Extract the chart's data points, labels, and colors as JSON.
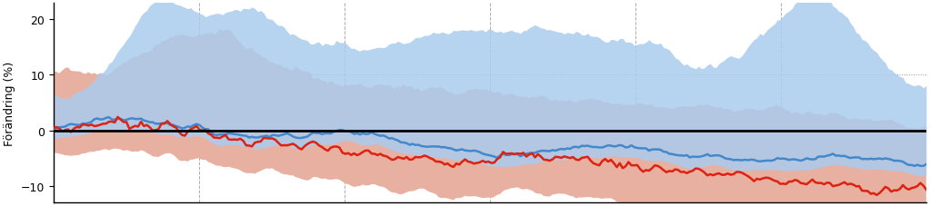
{
  "ylabel": "Förändring (%)",
  "yticks": [
    -10,
    0,
    10,
    20
  ],
  "ylim": [
    -13,
    23
  ],
  "background_color": "#ffffff",
  "red_color": "#dd2211",
  "blue_color": "#4488cc",
  "red_fill_color": "#e8b0a0",
  "blue_fill_color": "#aaccee",
  "zero_line_color": "#000000",
  "grid_color": "#777777",
  "n_points": 300
}
